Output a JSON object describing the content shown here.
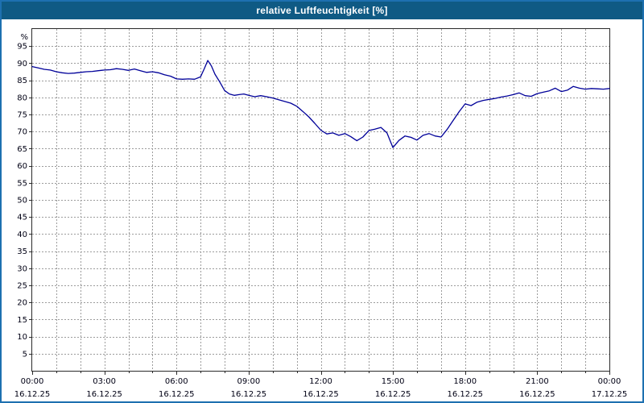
{
  "window": {
    "title": "relative Luftfeuchtigkeit [%]"
  },
  "colors": {
    "titlebar_bg": "#0f5a84",
    "titlebar_text": "#ffffff",
    "window_border": "#1d70b0",
    "plot_frame": "#2a2a2a",
    "grid": "#9c9c9c",
    "line": "#000099",
    "tick_label": "#000014"
  },
  "chart_data": {
    "type": "line",
    "title": "relative Luftfeuchtigkeit [%]",
    "xlabel": "",
    "ylabel": "%",
    "ylim": [
      0,
      100
    ],
    "xlim_hours": [
      0,
      24
    ],
    "grid": true,
    "legend": "none",
    "y_ticks": [
      5,
      10,
      15,
      20,
      25,
      30,
      35,
      40,
      45,
      50,
      55,
      60,
      65,
      70,
      75,
      80,
      85,
      90,
      95
    ],
    "x_minor_step_hours": 1,
    "x_major_ticks": [
      {
        "hour": 0,
        "time": "00:00",
        "date": "16.12.25"
      },
      {
        "hour": 3,
        "time": "03:00",
        "date": "16.12.25"
      },
      {
        "hour": 6,
        "time": "06:00",
        "date": "16.12.25"
      },
      {
        "hour": 9,
        "time": "09:00",
        "date": "16.12.25"
      },
      {
        "hour": 12,
        "time": "12:00",
        "date": "16.12.25"
      },
      {
        "hour": 15,
        "time": "15:00",
        "date": "16.12.25"
      },
      {
        "hour": 18,
        "time": "18:00",
        "date": "16.12.25"
      },
      {
        "hour": 21,
        "time": "21:00",
        "date": "16.12.25"
      },
      {
        "hour": 24,
        "time": "00:00",
        "date": "17.12.25"
      }
    ],
    "series": [
      {
        "name": "relative Luftfeuchtigkeit [%]",
        "color": "#000099",
        "points": [
          [
            0.0,
            89.0
          ],
          [
            0.25,
            88.6
          ],
          [
            0.5,
            88.2
          ],
          [
            0.75,
            88.0
          ],
          [
            1.0,
            87.5
          ],
          [
            1.25,
            87.2
          ],
          [
            1.5,
            87.0
          ],
          [
            1.75,
            87.1
          ],
          [
            2.0,
            87.3
          ],
          [
            2.25,
            87.5
          ],
          [
            2.5,
            87.6
          ],
          [
            2.75,
            87.8
          ],
          [
            3.0,
            88.0
          ],
          [
            3.25,
            88.1
          ],
          [
            3.5,
            88.4
          ],
          [
            3.75,
            88.2
          ],
          [
            4.0,
            87.9
          ],
          [
            4.25,
            88.3
          ],
          [
            4.5,
            87.8
          ],
          [
            4.75,
            87.3
          ],
          [
            5.0,
            87.5
          ],
          [
            5.25,
            87.2
          ],
          [
            5.5,
            86.6
          ],
          [
            5.75,
            86.2
          ],
          [
            6.0,
            85.4
          ],
          [
            6.25,
            85.3
          ],
          [
            6.5,
            85.4
          ],
          [
            6.75,
            85.3
          ],
          [
            7.0,
            86.0
          ],
          [
            7.15,
            88.3
          ],
          [
            7.3,
            90.8
          ],
          [
            7.45,
            89.2
          ],
          [
            7.6,
            86.8
          ],
          [
            7.8,
            84.5
          ],
          [
            8.0,
            82.0
          ],
          [
            8.2,
            81.0
          ],
          [
            8.4,
            80.6
          ],
          [
            8.6,
            80.8
          ],
          [
            8.8,
            81.0
          ],
          [
            9.0,
            80.6
          ],
          [
            9.25,
            80.2
          ],
          [
            9.5,
            80.5
          ],
          [
            9.75,
            80.2
          ],
          [
            10.0,
            79.8
          ],
          [
            10.25,
            79.3
          ],
          [
            10.5,
            78.8
          ],
          [
            10.75,
            78.3
          ],
          [
            11.0,
            77.4
          ],
          [
            11.25,
            75.9
          ],
          [
            11.5,
            74.3
          ],
          [
            11.75,
            72.4
          ],
          [
            12.0,
            70.4
          ],
          [
            12.25,
            69.3
          ],
          [
            12.5,
            69.6
          ],
          [
            12.75,
            68.9
          ],
          [
            13.0,
            69.4
          ],
          [
            13.25,
            68.5
          ],
          [
            13.5,
            67.3
          ],
          [
            13.75,
            68.4
          ],
          [
            14.0,
            70.3
          ],
          [
            14.25,
            70.7
          ],
          [
            14.5,
            71.2
          ],
          [
            14.75,
            69.6
          ],
          [
            15.0,
            65.3
          ],
          [
            15.25,
            67.4
          ],
          [
            15.5,
            68.7
          ],
          [
            15.75,
            68.3
          ],
          [
            16.0,
            67.5
          ],
          [
            16.25,
            68.9
          ],
          [
            16.5,
            69.4
          ],
          [
            16.75,
            68.7
          ],
          [
            17.0,
            68.4
          ],
          [
            17.25,
            70.6
          ],
          [
            17.5,
            73.2
          ],
          [
            17.75,
            75.8
          ],
          [
            18.0,
            78.1
          ],
          [
            18.25,
            77.6
          ],
          [
            18.5,
            78.6
          ],
          [
            18.75,
            79.1
          ],
          [
            19.0,
            79.4
          ],
          [
            19.25,
            79.7
          ],
          [
            19.5,
            80.1
          ],
          [
            19.75,
            80.4
          ],
          [
            20.0,
            80.8
          ],
          [
            20.25,
            81.3
          ],
          [
            20.5,
            80.5
          ],
          [
            20.75,
            80.3
          ],
          [
            21.0,
            81.1
          ],
          [
            21.25,
            81.5
          ],
          [
            21.5,
            81.9
          ],
          [
            21.75,
            82.7
          ],
          [
            22.0,
            81.7
          ],
          [
            22.25,
            82.1
          ],
          [
            22.5,
            83.2
          ],
          [
            22.75,
            82.7
          ],
          [
            23.0,
            82.4
          ],
          [
            23.25,
            82.6
          ],
          [
            23.5,
            82.5
          ],
          [
            23.75,
            82.4
          ],
          [
            24.0,
            82.6
          ]
        ]
      }
    ]
  }
}
